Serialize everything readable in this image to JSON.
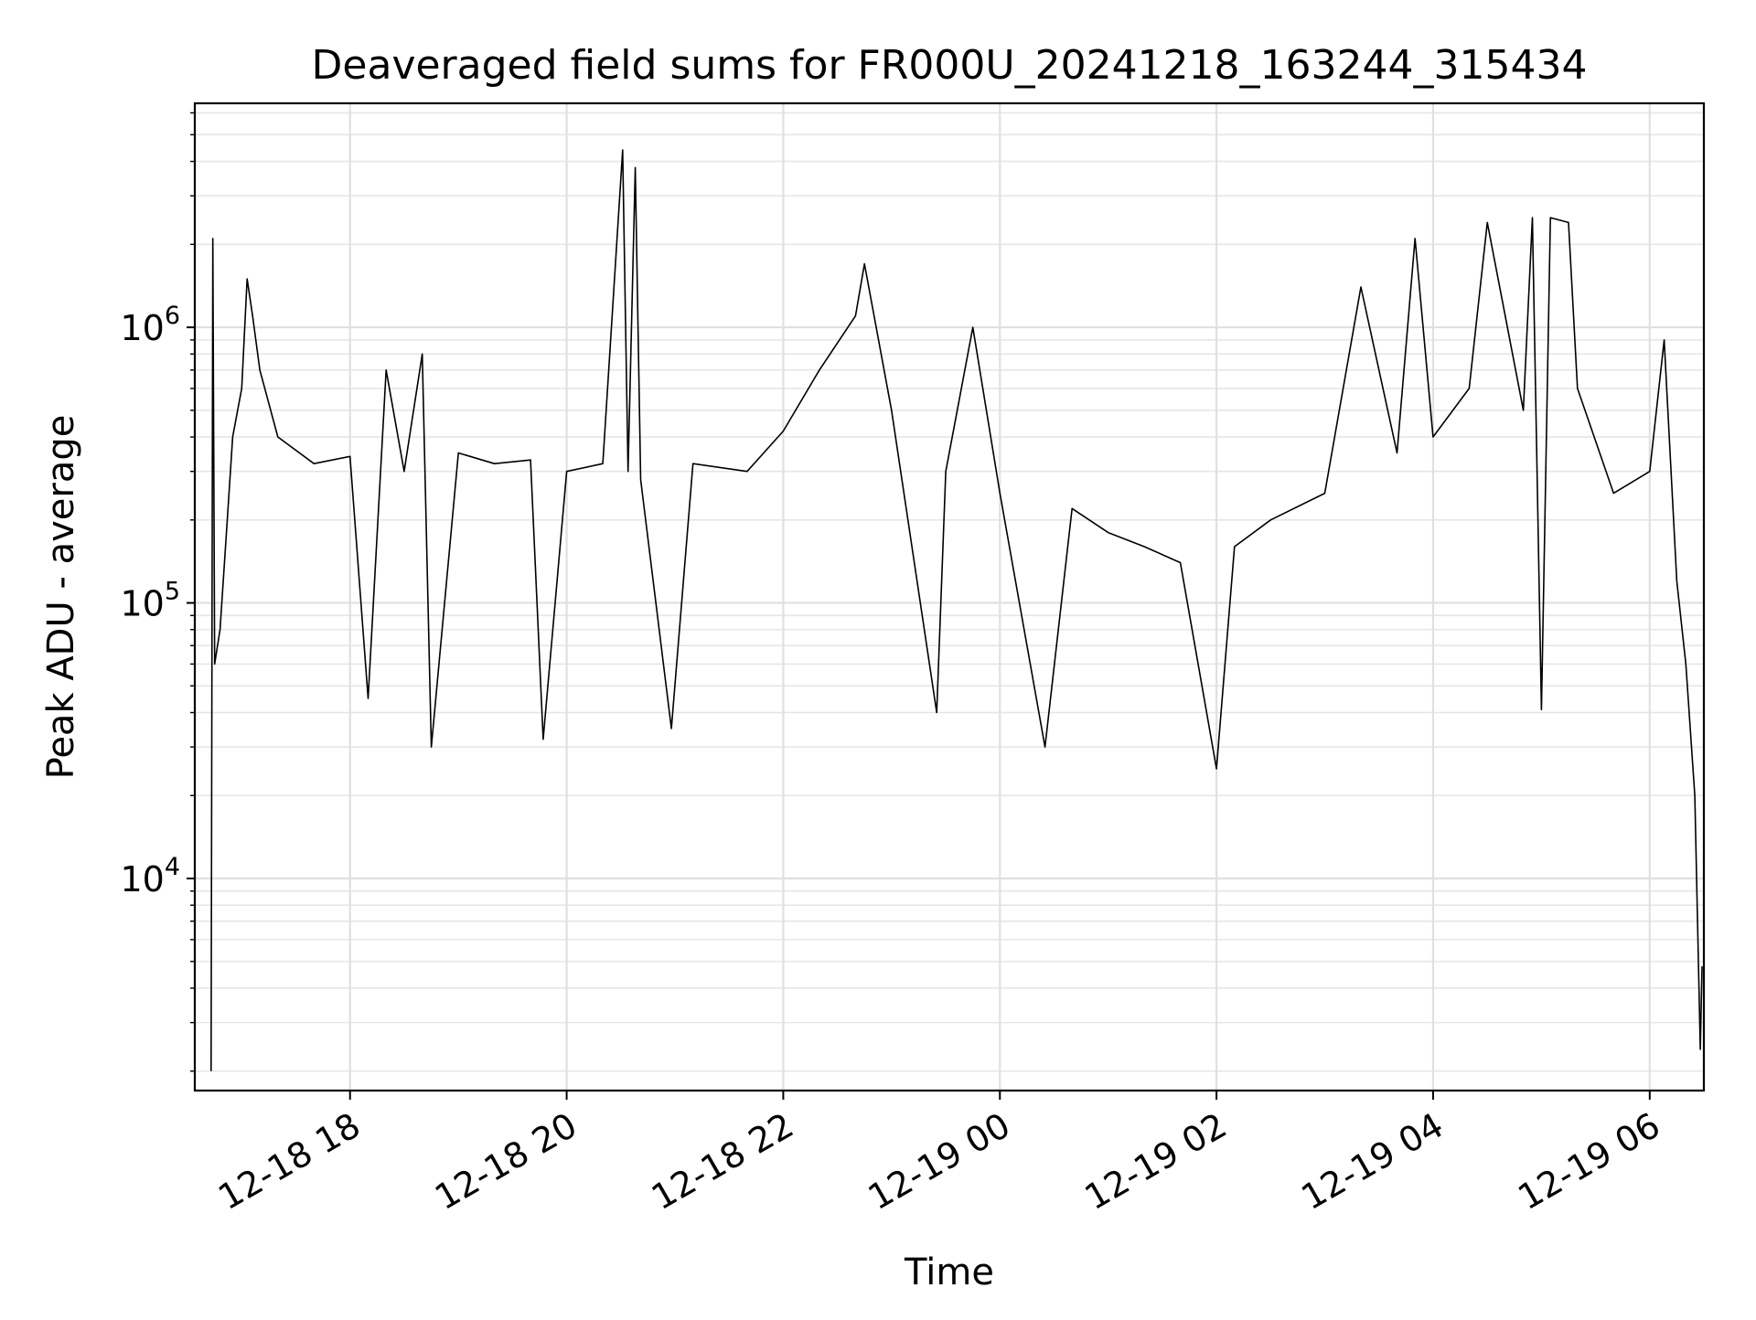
{
  "chart_data": {
    "type": "line",
    "title": "Deaveraged field sums for FR000U_20241218_163244_315434",
    "xlabel": "Time",
    "ylabel": "Peak ADU - average",
    "y_scale": "log",
    "ylim": [
      1700,
      6500000
    ],
    "xlim": [
      "2024-12-18T16:34",
      "2024-12-19T06:30"
    ],
    "grid": true,
    "x_ticks": [
      {
        "t": "2024-12-18T18:00",
        "label": "12-18 18"
      },
      {
        "t": "2024-12-18T20:00",
        "label": "12-18 20"
      },
      {
        "t": "2024-12-18T22:00",
        "label": "12-18 22"
      },
      {
        "t": "2024-12-19T00:00",
        "label": "12-19 00"
      },
      {
        "t": "2024-12-19T02:00",
        "label": "12-19 02"
      },
      {
        "t": "2024-12-19T04:00",
        "label": "12-19 04"
      },
      {
        "t": "2024-12-19T06:00",
        "label": "12-19 06"
      }
    ],
    "y_ticks": [
      {
        "value": 10000,
        "base": "10",
        "exp": "4"
      },
      {
        "value": 100000,
        "base": "10",
        "exp": "5"
      },
      {
        "value": 1000000,
        "base": "10",
        "exp": "6"
      }
    ],
    "series": [
      {
        "color": "#000000",
        "points": [
          [
            "2024-12-18T16:43",
            2000
          ],
          [
            "2024-12-18T16:44",
            2100000
          ],
          [
            "2024-12-18T16:45",
            60000
          ],
          [
            "2024-12-18T16:48",
            80000
          ],
          [
            "2024-12-18T16:52",
            200000
          ],
          [
            "2024-12-18T16:55",
            400000
          ],
          [
            "2024-12-18T17:00",
            600000
          ],
          [
            "2024-12-18T17:03",
            1500000
          ],
          [
            "2024-12-18T17:06",
            1100000
          ],
          [
            "2024-12-18T17:10",
            700000
          ],
          [
            "2024-12-18T17:20",
            400000
          ],
          [
            "2024-12-18T17:40",
            320000
          ],
          [
            "2024-12-18T18:00",
            340000
          ],
          [
            "2024-12-18T18:10",
            45000
          ],
          [
            "2024-12-18T18:20",
            700000
          ],
          [
            "2024-12-18T18:30",
            300000
          ],
          [
            "2024-12-18T18:40",
            800000
          ],
          [
            "2024-12-18T18:45",
            30000
          ],
          [
            "2024-12-18T19:00",
            350000
          ],
          [
            "2024-12-18T19:20",
            320000
          ],
          [
            "2024-12-18T19:40",
            330000
          ],
          [
            "2024-12-18T19:47",
            32000
          ],
          [
            "2024-12-18T20:00",
            300000
          ],
          [
            "2024-12-18T20:20",
            320000
          ],
          [
            "2024-12-18T20:31",
            4400000
          ],
          [
            "2024-12-18T20:34",
            300000
          ],
          [
            "2024-12-18T20:38",
            3800000
          ],
          [
            "2024-12-18T20:41",
            280000
          ],
          [
            "2024-12-18T20:58",
            35000
          ],
          [
            "2024-12-18T21:10",
            320000
          ],
          [
            "2024-12-18T21:40",
            300000
          ],
          [
            "2024-12-18T22:00",
            420000
          ],
          [
            "2024-12-18T22:20",
            700000
          ],
          [
            "2024-12-18T22:40",
            1100000
          ],
          [
            "2024-12-18T22:45",
            1700000
          ],
          [
            "2024-12-18T23:00",
            500000
          ],
          [
            "2024-12-18T23:25",
            40000
          ],
          [
            "2024-12-18T23:30",
            300000
          ],
          [
            "2024-12-18T23:45",
            1000000
          ],
          [
            "2024-12-19T00:00",
            250000
          ],
          [
            "2024-12-19T00:25",
            30000
          ],
          [
            "2024-12-19T00:40",
            220000
          ],
          [
            "2024-12-19T01:00",
            180000
          ],
          [
            "2024-12-19T01:20",
            160000
          ],
          [
            "2024-12-19T01:40",
            140000
          ],
          [
            "2024-12-19T02:00",
            25000
          ],
          [
            "2024-12-19T02:10",
            160000
          ],
          [
            "2024-12-19T02:30",
            200000
          ],
          [
            "2024-12-19T03:00",
            250000
          ],
          [
            "2024-12-19T03:20",
            1400000
          ],
          [
            "2024-12-19T03:40",
            350000
          ],
          [
            "2024-12-19T03:50",
            2100000
          ],
          [
            "2024-12-19T04:00",
            400000
          ],
          [
            "2024-12-19T04:20",
            600000
          ],
          [
            "2024-12-19T04:30",
            2400000
          ],
          [
            "2024-12-19T04:50",
            500000
          ],
          [
            "2024-12-19T04:55",
            2500000
          ],
          [
            "2024-12-19T05:00",
            41000
          ],
          [
            "2024-12-19T05:05",
            2500000
          ],
          [
            "2024-12-19T05:15",
            2400000
          ],
          [
            "2024-12-19T05:20",
            600000
          ],
          [
            "2024-12-19T05:40",
            250000
          ],
          [
            "2024-12-19T06:00",
            300000
          ],
          [
            "2024-12-19T06:08",
            900000
          ],
          [
            "2024-12-19T06:15",
            120000
          ],
          [
            "2024-12-19T06:20",
            60000
          ],
          [
            "2024-12-19T06:25",
            20000
          ],
          [
            "2024-12-19T06:28",
            2400
          ],
          [
            "2024-12-19T06:29",
            4800
          ]
        ]
      }
    ]
  }
}
